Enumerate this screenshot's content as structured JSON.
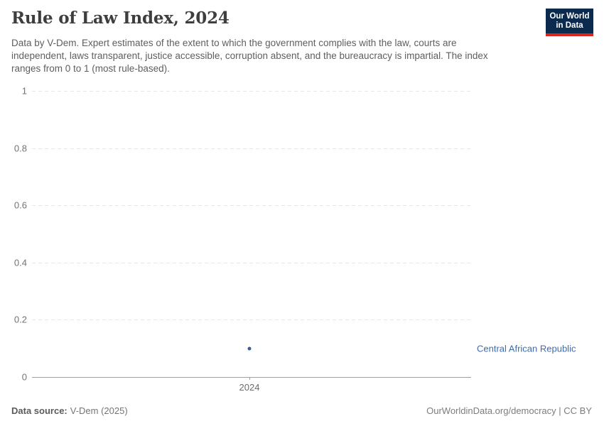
{
  "header": {
    "title": "Rule of Law Index, 2024",
    "subtitle": "Data by V-Dem. Expert estimates of the extent to which the government complies with the law, courts are independent, laws transparent, justice accessible, corruption absent, and the bureaucracy is impartial. The index ranges from 0 to 1 (most rule-based)."
  },
  "logo": {
    "line1": "Our World",
    "line2": "in Data",
    "bg_color": "#0b2a4e",
    "stripe_color": "#d8261c"
  },
  "chart_data": {
    "type": "scatter",
    "title": "Rule of Law Index, 2024",
    "x": [
      "2024"
    ],
    "series": [
      {
        "name": "Central African Republic",
        "values": [
          0.1
        ],
        "point_color": "#3a5c94",
        "label_color": "#3d6bb0"
      }
    ],
    "xlabel": "",
    "ylabel": "",
    "ylim": [
      0,
      1
    ],
    "yticks": [
      0,
      0.2,
      0.4,
      0.6,
      0.8,
      1
    ],
    "ytick_labels": [
      "0",
      "0.2",
      "0.4",
      "0.6",
      "0.8",
      "1"
    ],
    "xtick_labels": [
      "2024"
    ],
    "grid": "dashed-horizontal",
    "legend_position": "right-of-point",
    "grid_color": "#e7e7e7",
    "axis_color": "#a0a0a0"
  },
  "footer": {
    "source_label": "Data source:",
    "source_value": "V-Dem (2025)",
    "credit": "OurWorldinData.org/democracy | CC BY"
  }
}
